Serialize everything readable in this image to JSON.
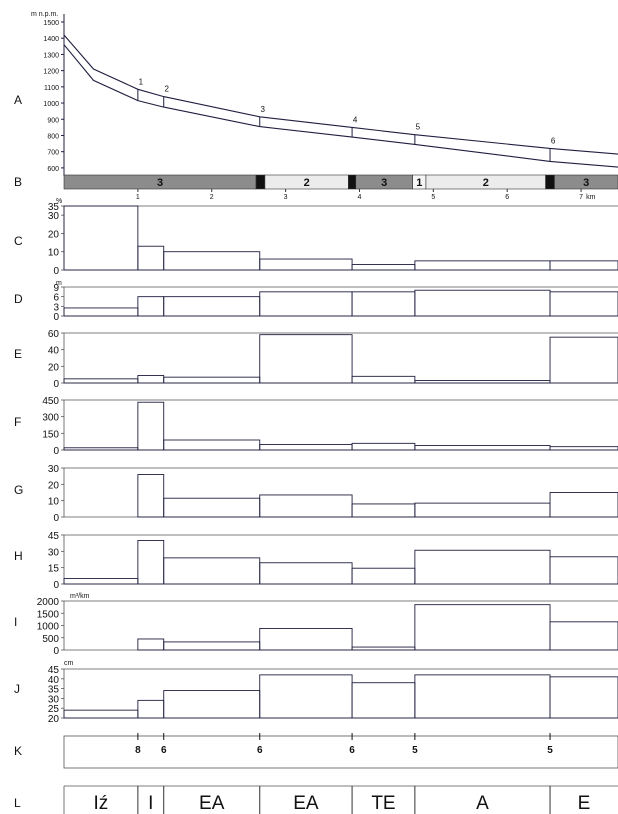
{
  "colors": {
    "line": "#1f1f40",
    "gray": "#8c8c8c",
    "light": "#ececec",
    "lighter": "#f6f6f6",
    "black": "#111111"
  },
  "boundaries_km": [
    1.0,
    1.35,
    2.65,
    3.9,
    4.75,
    6.58
  ],
  "chart_data": [
    {
      "id": "A",
      "type": "line",
      "panel_label": "A",
      "unit": "m n.p.m.",
      "ylim": [
        550,
        1500
      ],
      "yticks": [
        "1500",
        "1400",
        "1300",
        "1200",
        "1100",
        "1000",
        "900",
        "800",
        "700",
        "600"
      ],
      "series": [
        {
          "x": [
            0,
            0.4,
            1.0,
            1.35,
            2.65,
            3.9,
            4.75,
            6.58,
            7.5
          ],
          "values": [
            1420,
            1210,
            1085,
            1040,
            915,
            850,
            805,
            720,
            685
          ]
        },
        {
          "x": [
            0,
            0.4,
            1.0,
            1.35,
            2.65,
            3.9,
            4.75,
            6.58,
            7.5
          ],
          "values": [
            1360,
            1140,
            1015,
            975,
            855,
            790,
            745,
            640,
            605
          ]
        }
      ],
      "point_labels": [
        {
          "label": "1",
          "x": 1.0,
          "y": 1085
        },
        {
          "label": "2",
          "x": 1.35,
          "y": 1040
        },
        {
          "label": "3",
          "x": 2.65,
          "y": 915
        },
        {
          "label": "4",
          "x": 3.9,
          "y": 850
        },
        {
          "label": "5",
          "x": 4.75,
          "y": 805
        },
        {
          "label": "6",
          "x": 6.58,
          "y": 720
        }
      ]
    },
    {
      "id": "B",
      "type": "bar",
      "panel_label": "B",
      "segments": [
        {
          "from": 0,
          "to": 2.6,
          "label": "3",
          "shade": "gray"
        },
        {
          "from": 2.6,
          "to": 2.72,
          "label": "",
          "shade": "black"
        },
        {
          "from": 2.72,
          "to": 3.85,
          "label": "2",
          "shade": "light"
        },
        {
          "from": 3.85,
          "to": 3.95,
          "label": "",
          "shade": "black"
        },
        {
          "from": 3.95,
          "to": 4.72,
          "label": "3",
          "shade": "gray"
        },
        {
          "from": 4.72,
          "to": 4.9,
          "label": "1",
          "shade": "lighter"
        },
        {
          "from": 4.9,
          "to": 6.52,
          "label": "2",
          "shade": "light"
        },
        {
          "from": 6.52,
          "to": 6.64,
          "label": "",
          "shade": "black"
        },
        {
          "from": 6.64,
          "to": 7.5,
          "label": "3",
          "shade": "gray"
        }
      ],
      "xticks": [
        "1",
        "2",
        "3",
        "4",
        "5",
        "6",
        "7"
      ],
      "x_unit": "km"
    },
    {
      "id": "C",
      "type": "bar",
      "panel_label": "C",
      "unit": "%",
      "ylim": [
        0,
        35
      ],
      "yticks": [
        "35",
        "30",
        "20",
        "10",
        "0"
      ],
      "ytick_values": [
        35,
        30,
        20,
        10,
        0
      ],
      "values": [
        35,
        13,
        10,
        6,
        3,
        5,
        5
      ]
    },
    {
      "id": "D",
      "type": "bar",
      "panel_label": "D",
      "unit": "m",
      "ylim": [
        0,
        9
      ],
      "yticks": [
        "9",
        "6",
        "3",
        "0"
      ],
      "ytick_values": [
        9,
        6,
        3,
        0
      ],
      "values": [
        2.5,
        6,
        6,
        7.5,
        7.5,
        8,
        7.5
      ]
    },
    {
      "id": "E",
      "type": "bar",
      "panel_label": "E",
      "unit": "",
      "ylim": [
        0,
        60
      ],
      "yticks": [
        "60",
        "40",
        "20",
        "0"
      ],
      "ytick_values": [
        60,
        40,
        20,
        0
      ],
      "values": [
        5,
        9,
        7,
        58,
        8,
        3,
        55
      ]
    },
    {
      "id": "F",
      "type": "bar",
      "panel_label": "F",
      "unit": "",
      "ylim": [
        0,
        450
      ],
      "yticks": [
        "450",
        "300",
        "150",
        "0"
      ],
      "ytick_values": [
        450,
        300,
        150,
        0
      ],
      "values": [
        20,
        430,
        90,
        50,
        60,
        40,
        30
      ]
    },
    {
      "id": "G",
      "type": "bar",
      "panel_label": "G",
      "unit": "",
      "ylim": [
        0,
        30
      ],
      "yticks": [
        "30",
        "20",
        "10",
        "0"
      ],
      "ytick_values": [
        30,
        20,
        10,
        0
      ],
      "values": [
        0,
        26,
        11.5,
        13.5,
        8,
        8.5,
        15
      ]
    },
    {
      "id": "H",
      "type": "bar",
      "panel_label": "H",
      "unit": "",
      "ylim": [
        0,
        45
      ],
      "yticks": [
        "45",
        "30",
        "15",
        "0"
      ],
      "ytick_values": [
        45,
        30,
        15,
        0
      ],
      "values": [
        5,
        40,
        24,
        19.5,
        14.5,
        31,
        25
      ]
    },
    {
      "id": "I",
      "type": "bar",
      "panel_label": "I",
      "unit": "m³/km",
      "ylim": [
        0,
        2000
      ],
      "yticks": [
        "2000",
        "1500",
        "1000",
        "500",
        "0"
      ],
      "ytick_values": [
        2000,
        1500,
        1000,
        500,
        0
      ],
      "values": [
        0,
        450,
        330,
        880,
        120,
        1850,
        1150
      ]
    },
    {
      "id": "J",
      "type": "bar",
      "panel_label": "J",
      "unit": "cm",
      "ylim": [
        20,
        45
      ],
      "yticks": [
        "45",
        "40",
        "35",
        "30",
        "25",
        "20"
      ],
      "ytick_values": [
        45,
        40,
        35,
        30,
        25,
        20
      ],
      "values": [
        24,
        29,
        34,
        42,
        38,
        42,
        41
      ]
    }
  ],
  "panel_k": {
    "panel_label": "K",
    "boundary_labels": [
      "8",
      "6",
      "6",
      "6",
      "5",
      "5"
    ]
  },
  "panel_l": {
    "panel_label": "L",
    "cells": [
      "Iź",
      "I",
      "EA",
      "EA",
      "TE",
      "A",
      "E"
    ]
  }
}
